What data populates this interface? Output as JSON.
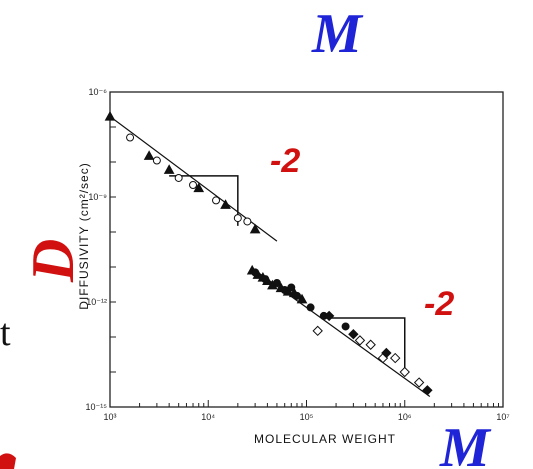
{
  "chart_data": {
    "type": "scatter",
    "title": "",
    "xlabel": "MOLECULAR WEIGHT",
    "ylabel": "DIFFUSIVITY (cm²/sec)",
    "xscale": "log",
    "yscale": "log",
    "xlim": [
      1000,
      10000000
    ],
    "ylim": [
      1e-15,
      1e-06
    ],
    "x_ticks": [
      {
        "value": 1000,
        "label": "10³"
      },
      {
        "value": 10000,
        "label": "10⁴"
      },
      {
        "value": 100000,
        "label": "10⁵"
      },
      {
        "value": 1000000,
        "label": "10⁶"
      },
      {
        "value": 10000000,
        "label": "10⁷"
      }
    ],
    "y_ticks": [
      {
        "value": 1e-06,
        "label": "10⁻⁶"
      },
      {
        "value": 1e-09,
        "label": "10⁻⁹"
      },
      {
        "value": 1e-12,
        "label": "10⁻¹²"
      },
      {
        "value": 1e-15,
        "label": "10⁻¹⁵"
      }
    ],
    "grid": false,
    "series": [
      {
        "marker": "triangle-filled",
        "points": [
          [
            1000,
            2e-07
          ],
          [
            2500,
            1.5e-08
          ],
          [
            4000,
            6e-09
          ],
          [
            8000,
            1.8e-09
          ],
          [
            15000,
            6e-10
          ],
          [
            30000,
            1.2e-10
          ]
        ]
      },
      {
        "marker": "circle-open",
        "points": [
          [
            1600,
            5e-08
          ],
          [
            3000,
            1.1e-08
          ],
          [
            5000,
            3.5e-09
          ],
          [
            7000,
            2.2e-09
          ],
          [
            12000,
            8e-10
          ],
          [
            20000,
            2.5e-10
          ],
          [
            25000,
            2e-10
          ]
        ]
      },
      {
        "marker": "triangle-filled",
        "points": [
          [
            28000,
            8e-12
          ],
          [
            32000,
            6e-12
          ],
          [
            36000,
            5e-12
          ],
          [
            40000,
            4e-12
          ],
          [
            45000,
            3e-12
          ],
          [
            55000,
            2.5e-12
          ],
          [
            65000,
            2e-12
          ],
          [
            75000,
            1.8e-12
          ],
          [
            90000,
            1.2e-12
          ]
        ]
      },
      {
        "marker": "circle-filled",
        "points": [
          [
            30000,
            7e-12
          ],
          [
            38000,
            4.5e-12
          ],
          [
            50000,
            3.5e-12
          ],
          [
            60000,
            2.2e-12
          ],
          [
            70000,
            2.6e-12
          ],
          [
            80000,
            1.5e-12
          ],
          [
            110000,
            7e-13
          ],
          [
            150000,
            4e-13
          ],
          [
            250000,
            2e-13
          ]
        ]
      },
      {
        "marker": "diamond-open",
        "points": [
          [
            130000,
            1.5e-13
          ],
          [
            350000,
            8e-14
          ],
          [
            450000,
            6e-14
          ],
          [
            600000,
            2.5e-14
          ],
          [
            800000,
            2.5e-14
          ],
          [
            1000000,
            1e-14
          ],
          [
            1400000,
            5e-15
          ]
        ]
      },
      {
        "marker": "diamond-filled",
        "points": [
          [
            170000,
            4e-13
          ],
          [
            300000,
            1.2e-13
          ],
          [
            650000,
            3.5e-14
          ],
          [
            1700000,
            3e-15
          ]
        ]
      }
    ],
    "fit_lines": [
      {
        "points": [
          [
            1000,
            2e-07
          ],
          [
            50000,
            5.5e-11
          ]
        ]
      },
      {
        "points": [
          [
            30000,
            8e-12
          ],
          [
            1800000,
            2e-15
          ]
        ]
      }
    ],
    "slope_triangles": [
      {
        "apex": [
          4000,
          4e-09
        ],
        "corner": [
          20000,
          4e-09
        ],
        "end": [
          20000,
          1.5e-10
        ],
        "label": "-2"
      },
      {
        "apex": [
          150000,
          3.5e-13
        ],
        "corner": [
          1000000,
          3.5e-13
        ],
        "end": [
          1000000,
          1e-14
        ],
        "label": "-2"
      }
    ],
    "annotations": {
      "top_symbol": "M",
      "left_symbol": "D",
      "bottom_symbol": "M"
    },
    "colors": {
      "symbol_m": "#1f24d6",
      "symbol_d": "#d11010",
      "slope": "#d11010",
      "ink": "#111111"
    }
  },
  "fragments": {
    "left_text": "t"
  }
}
